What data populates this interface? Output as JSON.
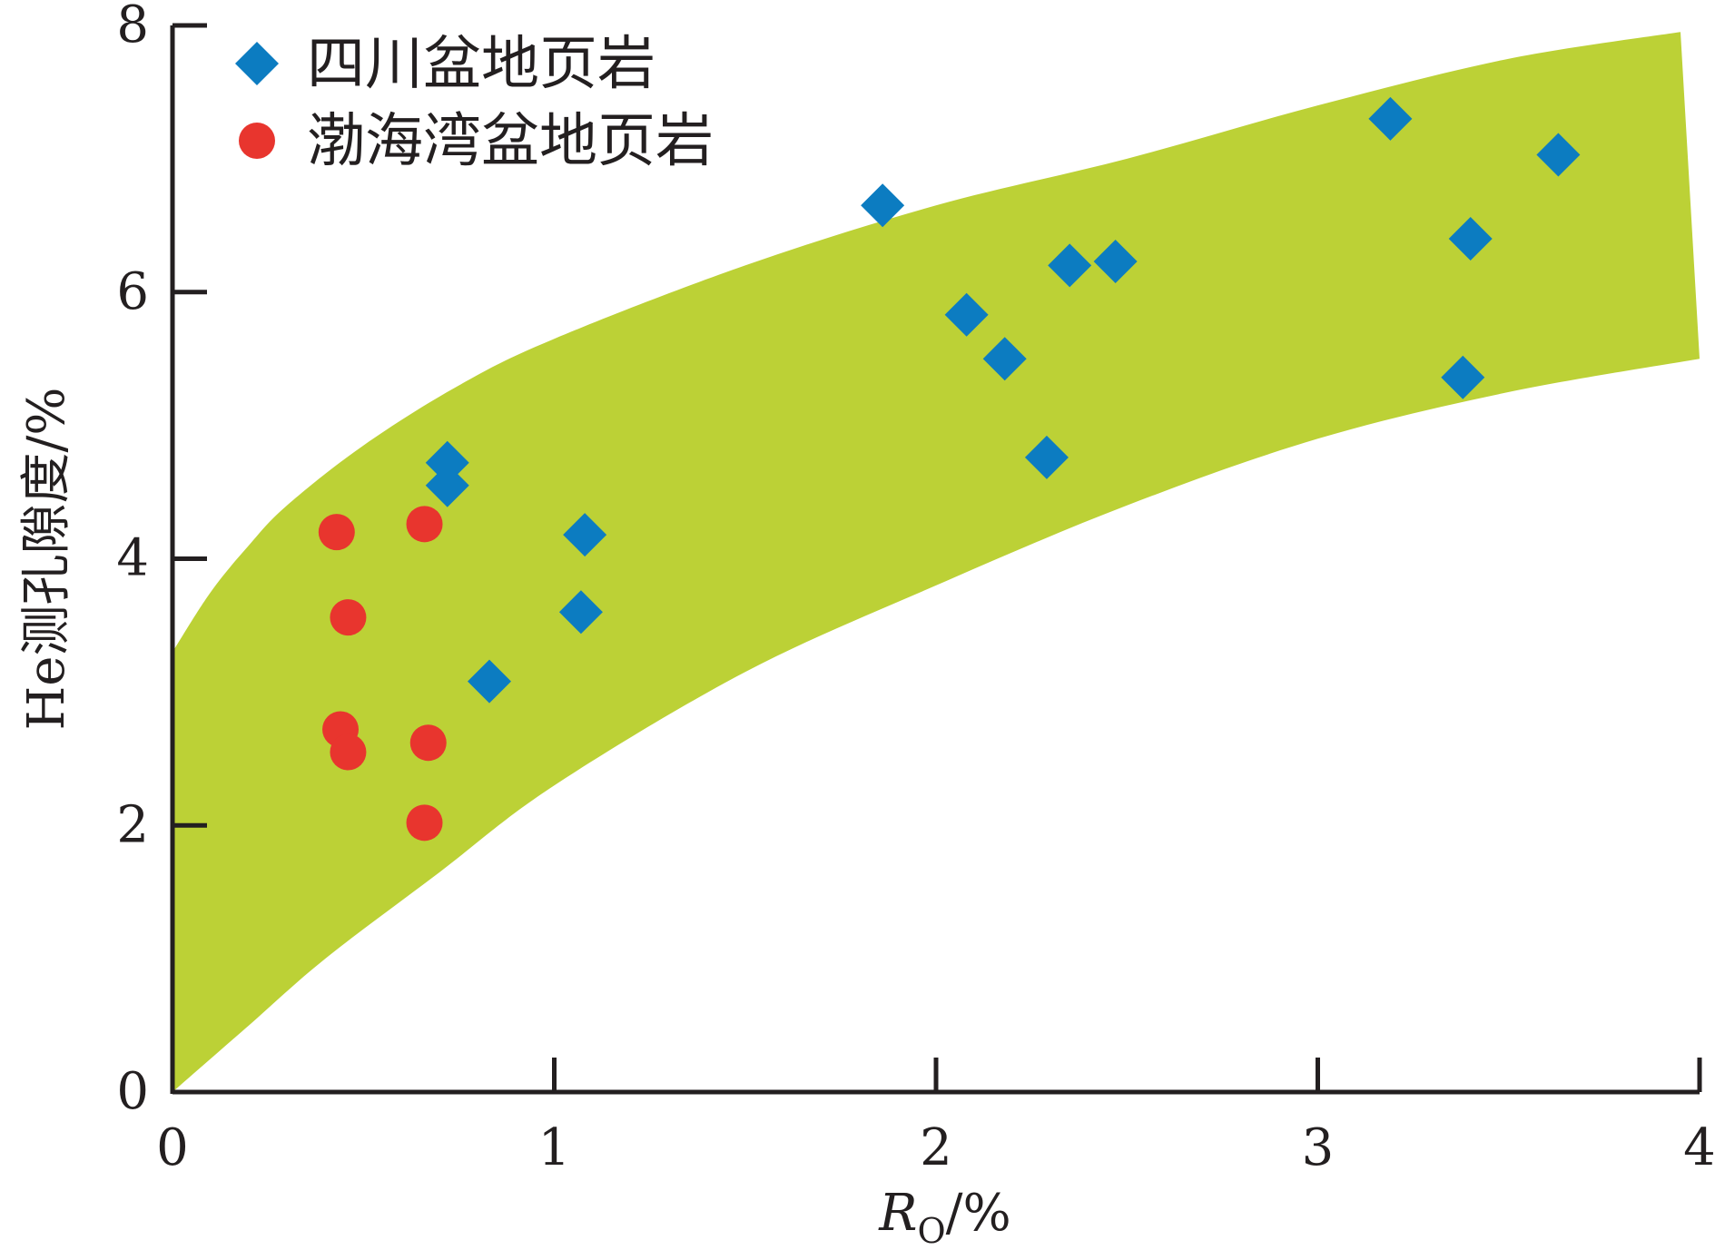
{
  "chart_data": {
    "type": "scatter",
    "xlabel_main": "R",
    "xlabel_sub": "O",
    "xlabel_unit": "/%",
    "ylabel": "He测孔隙度/%",
    "xlim": [
      0,
      4
    ],
    "ylim": [
      0,
      8
    ],
    "x_ticks": [
      "0",
      "1",
      "2",
      "3",
      "4"
    ],
    "y_ticks": [
      "0",
      "2",
      "4",
      "6",
      "8"
    ],
    "grid": false,
    "legend_position": "top-left",
    "band": {
      "color": "#bcd136",
      "upper": [
        [
          0,
          3.3
        ],
        [
          0.1,
          3.75
        ],
        [
          0.2,
          4.1
        ],
        [
          0.3,
          4.4
        ],
        [
          0.5,
          4.85
        ],
        [
          0.75,
          5.3
        ],
        [
          1.0,
          5.65
        ],
        [
          1.5,
          6.2
        ],
        [
          2.0,
          6.65
        ],
        [
          2.5,
          7.0
        ],
        [
          3.0,
          7.4
        ],
        [
          3.5,
          7.75
        ],
        [
          3.95,
          7.95
        ]
      ],
      "lower": [
        [
          0,
          0
        ],
        [
          0.2,
          0.5
        ],
        [
          0.4,
          1.0
        ],
        [
          0.7,
          1.65
        ],
        [
          1.0,
          2.3
        ],
        [
          1.5,
          3.15
        ],
        [
          2.0,
          3.8
        ],
        [
          2.5,
          4.4
        ],
        [
          3.0,
          4.9
        ],
        [
          3.5,
          5.25
        ],
        [
          4.0,
          5.5
        ]
      ]
    },
    "series": [
      {
        "name": "四川盆地页岩",
        "marker": "diamond",
        "color": "#0c7cc1",
        "points": [
          [
            0.72,
            4.72
          ],
          [
            0.72,
            4.55
          ],
          [
            0.83,
            3.08
          ],
          [
            1.08,
            4.18
          ],
          [
            1.07,
            3.6
          ],
          [
            1.86,
            6.65
          ],
          [
            2.08,
            5.83
          ],
          [
            2.18,
            5.5
          ],
          [
            2.29,
            4.76
          ],
          [
            2.35,
            6.2
          ],
          [
            2.47,
            6.23
          ],
          [
            3.19,
            7.3
          ],
          [
            3.4,
            6.4
          ],
          [
            3.38,
            5.36
          ],
          [
            3.63,
            7.03
          ]
        ]
      },
      {
        "name": "渤海湾盆地页岩",
        "marker": "circle",
        "color": "#e8352e",
        "points": [
          [
            0.43,
            4.2
          ],
          [
            0.66,
            4.26
          ],
          [
            0.46,
            3.56
          ],
          [
            0.44,
            2.72
          ],
          [
            0.46,
            2.55
          ],
          [
            0.67,
            2.62
          ],
          [
            0.66,
            2.02
          ]
        ]
      }
    ]
  }
}
